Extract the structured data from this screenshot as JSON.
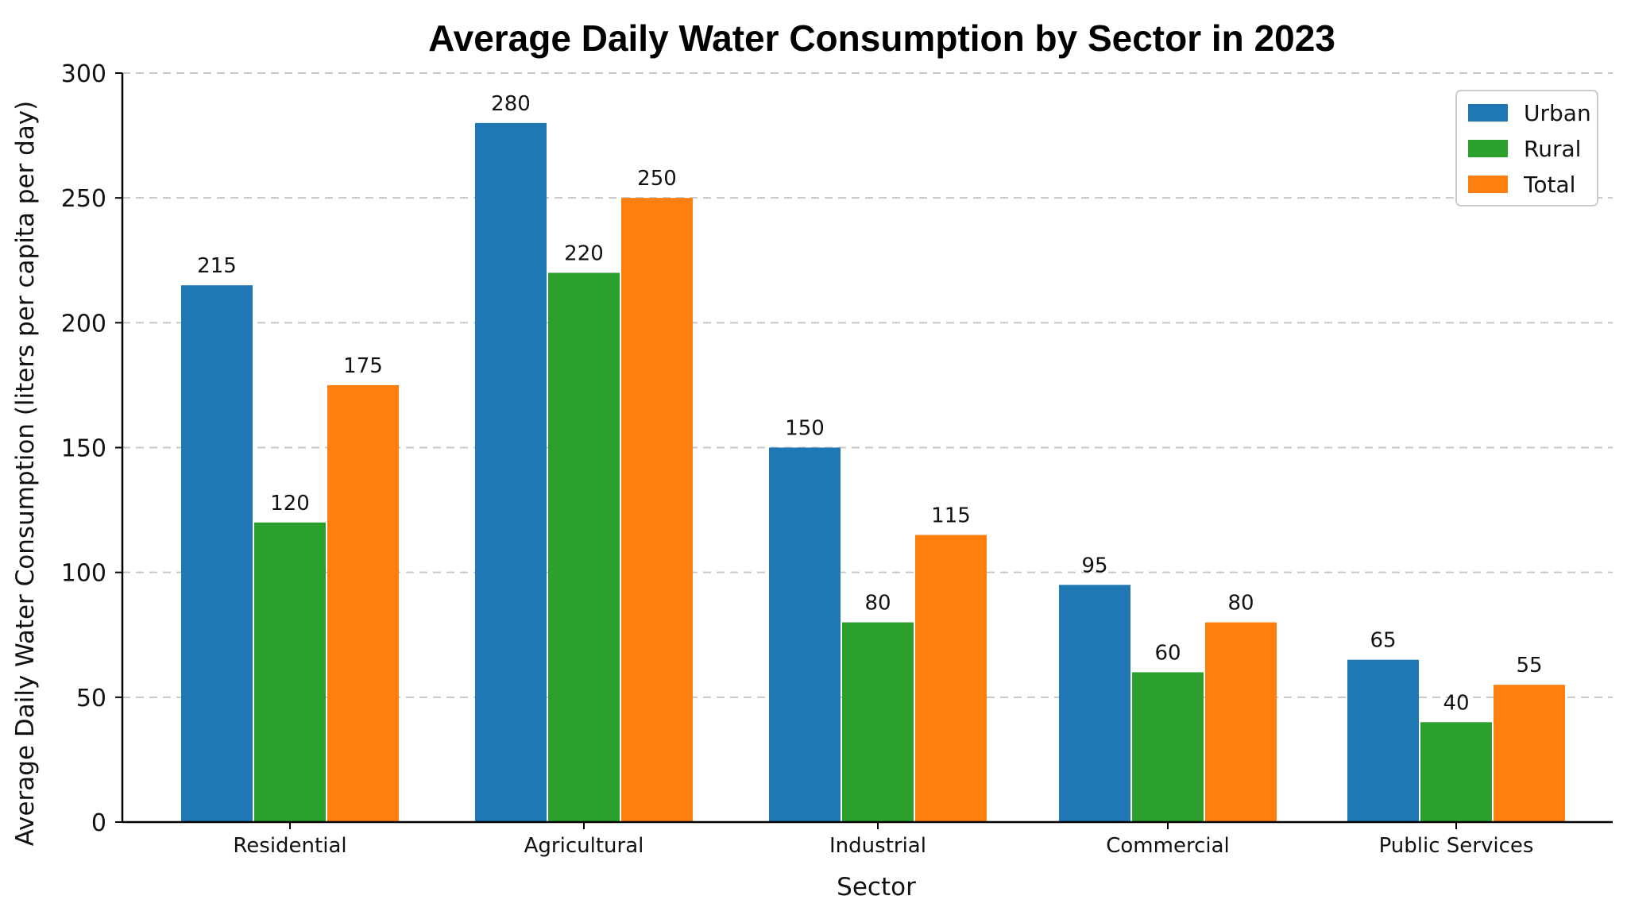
{
  "chart_data": {
    "type": "bar",
    "title": "Average Daily Water Consumption by Sector in 2023",
    "xlabel": "Sector",
    "ylabel": "Average Daily Water Consumption (liters per capita per day)",
    "categories": [
      "Residential",
      "Agricultural",
      "Industrial",
      "Commercial",
      "Public Services"
    ],
    "series": [
      {
        "name": "Urban",
        "color": "#1f77b4",
        "values": [
          215,
          280,
          150,
          95,
          65
        ]
      },
      {
        "name": "Rural",
        "color": "#2ca02c",
        "values": [
          120,
          220,
          80,
          60,
          40
        ]
      },
      {
        "name": "Total",
        "color": "#ff7f0e",
        "values": [
          175,
          250,
          115,
          80,
          55
        ]
      }
    ],
    "ylim": [
      0,
      300
    ],
    "yticks": [
      0,
      50,
      100,
      150,
      200,
      250,
      300
    ],
    "grid": "horizontal dashed",
    "legend_position": "top-right"
  }
}
